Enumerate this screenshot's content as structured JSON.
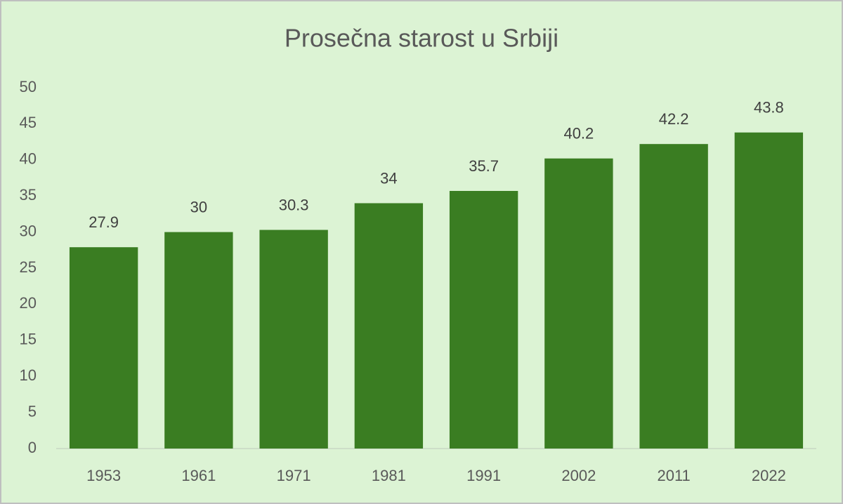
{
  "chart_data": {
    "type": "bar",
    "title": "Prosečna starost u Srbiji",
    "categories": [
      "1953",
      "1961",
      "1971",
      "1981",
      "1991",
      "2002",
      "2011",
      "2022"
    ],
    "values": [
      27.9,
      30,
      30.3,
      34,
      35.7,
      40.2,
      42.2,
      43.8
    ],
    "color": "#3a7d22",
    "ylim": [
      0,
      50
    ],
    "yticks": [
      0,
      5,
      10,
      15,
      20,
      25,
      30,
      35,
      40,
      45,
      50
    ],
    "grid": false
  }
}
